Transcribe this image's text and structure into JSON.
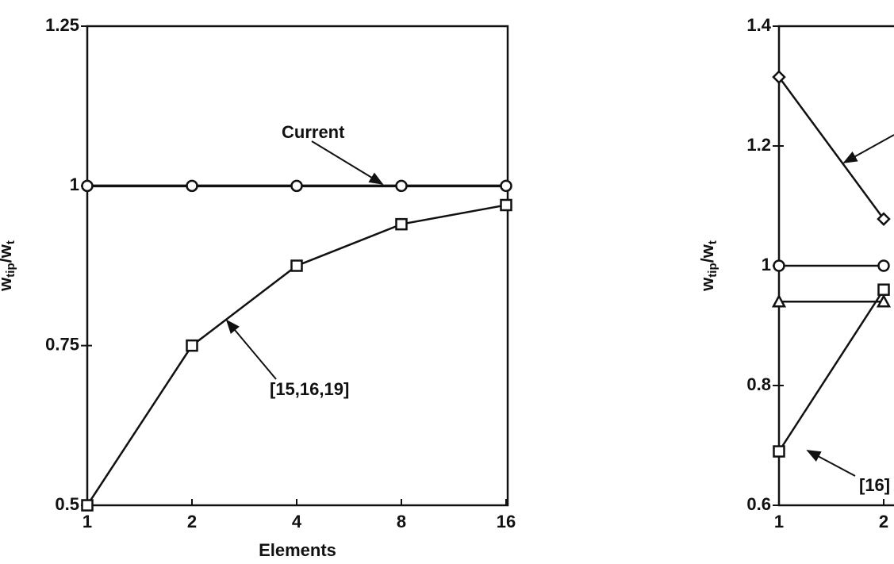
{
  "chart_data": [
    {
      "type": "line",
      "categories": [
        "1",
        "2",
        "4",
        "8",
        "16"
      ],
      "x_label": "Elements",
      "y_label": {
        "text": "w",
        "sub": "tip",
        "text2": "/w",
        "sub2": "t"
      },
      "ylim": [
        0.5,
        1.25
      ],
      "yticks": [
        0.5,
        0.75,
        1,
        1.25
      ],
      "color": "#111111",
      "series": [
        {
          "name": "Current",
          "marker": "circle",
          "values": [
            1,
            1,
            1,
            1,
            1
          ]
        },
        {
          "name": "[15,16,19]",
          "marker": "square",
          "values": [
            0.5,
            0.75,
            0.875,
            0.94,
            0.97
          ]
        }
      ]
    },
    {
      "type": "line",
      "categories": [
        "1",
        "2"
      ],
      "y_label": {
        "text": "w",
        "sub": "tip",
        "text2": "/w",
        "sub2": "t"
      },
      "ylim": [
        0.6,
        1.4
      ],
      "yticks": [
        0.6,
        0.8,
        1,
        1.2,
        1.4
      ],
      "color": "#111111",
      "series": [
        {
          "marker": "diamond",
          "values": [
            1.315,
            1.078
          ]
        },
        {
          "marker": "circle",
          "values": [
            1,
            1
          ]
        },
        {
          "marker": "triangle",
          "values": [
            0.94,
            0.94
          ]
        },
        {
          "name": "[16]",
          "marker": "square",
          "values": [
            0.69,
            0.96
          ]
        }
      ]
    }
  ]
}
